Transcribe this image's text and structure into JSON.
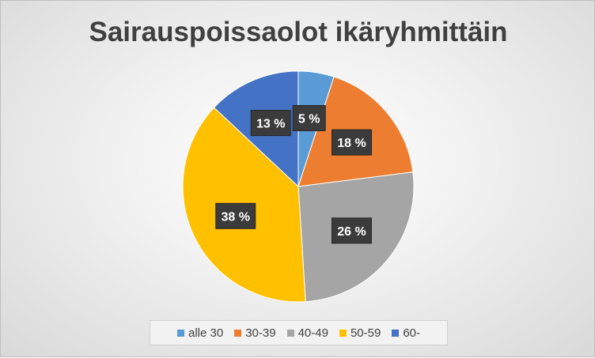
{
  "chart_data": {
    "type": "pie",
    "title": "Sairauspoissaolot ikäryhmittäin",
    "categories": [
      "alle 30",
      "30-39",
      "40-49",
      "50-59",
      "60-"
    ],
    "values": [
      5,
      18,
      26,
      38,
      13
    ],
    "data_labels": [
      "5 %",
      "18 %",
      "26 %",
      "38 %",
      "13 %"
    ],
    "colors": [
      "#5b9bd5",
      "#ed7d31",
      "#a5a5a5",
      "#ffc000",
      "#4472c4"
    ],
    "legend_position": "bottom"
  }
}
